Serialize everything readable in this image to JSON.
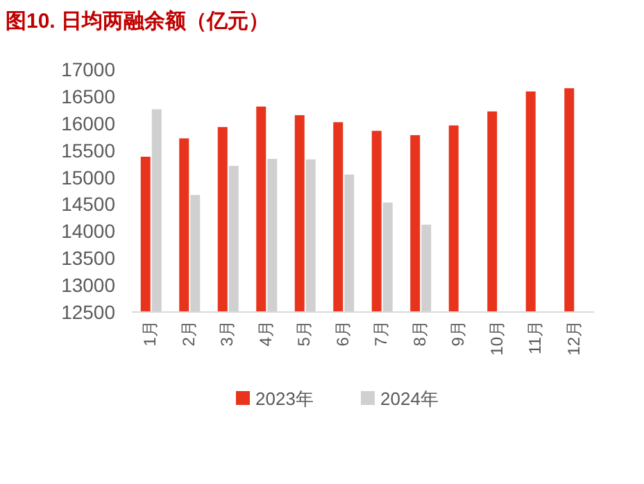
{
  "chart_data": {
    "type": "bar",
    "title": "图10. 日均两融余额（亿元）",
    "categories": [
      "1月",
      "2月",
      "3月",
      "4月",
      "5月",
      "6月",
      "7月",
      "8月",
      "9月",
      "10月",
      "11月",
      "12月"
    ],
    "series": [
      {
        "name": "2023年",
        "color": "#e8341c",
        "values": [
          15380,
          15720,
          15930,
          16310,
          16150,
          16020,
          15860,
          15780,
          15960,
          16220,
          16590,
          16650
        ]
      },
      {
        "name": "2024年",
        "color": "#d0d0d0",
        "values": [
          16260,
          14670,
          15210,
          15340,
          15330,
          15050,
          14530,
          14120,
          null,
          null,
          null,
          null
        ]
      }
    ],
    "ylim": [
      12500,
      17000
    ],
    "yticks": [
      12500,
      13000,
      13500,
      14000,
      14500,
      15000,
      15500,
      16000,
      16500,
      17000
    ],
    "grid": false,
    "legend": "bottom"
  }
}
